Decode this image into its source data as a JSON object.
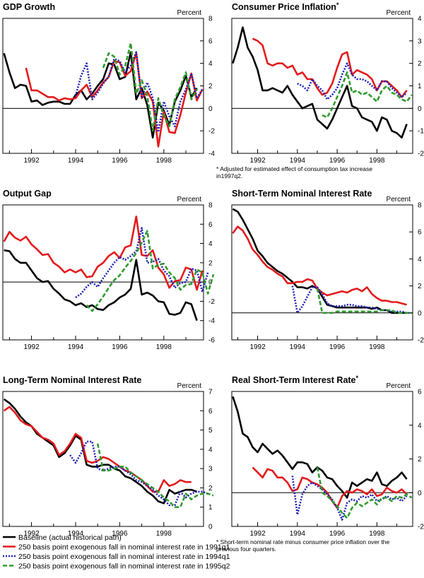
{
  "series_names": [
    "Baseline (actual historical path)",
    "250 basis point exogenous fall in nominal interest rate in 1991q1",
    "250 basis point exogenous fall in nominal interest rate in 1994q1",
    "250 basis point exogenous fall in nominal interest rate in 1995q2"
  ],
  "series_colors": [
    "#000000",
    "#e31a1c",
    "#1f1fb4",
    "#2e9b2e"
  ],
  "series_dash": [
    "",
    "",
    "2,2",
    "6,3"
  ],
  "legend": [
    "Baseline (actual historical path)",
    "250 basis point exogenous fall in nominal interest rate in 1991q1",
    "250 basis point exogenous fall in nominal interest rate in 1994q1",
    "250 basis point exogenous fall in nominal interest rate in 1995q2"
  ],
  "chart_data": [
    {
      "type": "line",
      "title": "GDP Growth",
      "title_mark": "",
      "ylabel": "Percent",
      "xlim": [
        1990.7,
        1999.8
      ],
      "ylim": [
        -4,
        8
      ],
      "yticks": [
        -4,
        -2,
        0,
        2,
        4,
        6,
        8
      ],
      "xticks": [
        1992,
        1994,
        1996,
        1998
      ],
      "xtick_labels": [
        "1992",
        "1994",
        "1996",
        "1998"
      ],
      "note": "",
      "series": [
        {
          "name": "Baseline (actual historical path)",
          "start": 1990.75,
          "values": [
            4.9,
            3.2,
            1.8,
            2.1,
            2.0,
            0.6,
            0.7,
            0.3,
            0.5,
            0.6,
            0.6,
            0.4,
            0.4,
            1.2,
            1.6,
            0.8,
            1.3,
            2.0,
            2.6,
            4.0,
            3.9,
            2.6,
            2.8,
            5.0,
            0.8,
            1.8,
            0.3,
            -2.6,
            0.5,
            -0.2,
            -1.5,
            0.6,
            1.6,
            2.9,
            1.0,
            1.8
          ]
        },
        {
          "name": "250 basis point exogenous fall in nominal interest rate in 1991q1",
          "start": 1991.75,
          "values": [
            3.6,
            1.6,
            1.6,
            1.3,
            1.0,
            1.0,
            0.7,
            0.9,
            0.8,
            0.9,
            1.6,
            2.1,
            1.0,
            1.6,
            2.3,
            2.8,
            4.2,
            4.1,
            2.9,
            3.3,
            4.9,
            0.9,
            1.5,
            0.6,
            -3.4,
            -0.3,
            -2.1,
            -2.2,
            -0.6,
            1.4,
            3.1,
            0.7,
            1.7
          ]
        },
        {
          "name": "250 basis point exogenous fall in nominal interest rate in 1994q1",
          "start": 1994.0,
          "values": [
            1.1,
            2.9,
            4.0,
            0.8,
            1.4,
            2.2,
            2.8,
            4.4,
            4.2,
            3.2,
            3.8,
            5.0,
            0.9,
            2.3,
            0.9,
            -2.1,
            0.6,
            -0.7,
            -1.6,
            0.6,
            1.7,
            3.1,
            0.9,
            1.7
          ]
        },
        {
          "name": "250 basis point exogenous fall in nominal interest rate in 1995q2",
          "start": 1995.25,
          "values": [
            3.6,
            4.9,
            4.6,
            3.0,
            3.8,
            5.8,
            1.3,
            2.5,
            1.1,
            -2.0,
            0.9,
            -0.6,
            -1.6,
            0.8,
            1.9,
            3.2,
            0.8,
            1.7
          ]
        }
      ]
    },
    {
      "type": "line",
      "title": "Consumer Price Inflation",
      "title_mark": "*",
      "ylabel": "Percent",
      "xlim": [
        1990.7,
        1999.8
      ],
      "ylim": [
        -2,
        4
      ],
      "yticks": [
        -2,
        -1,
        0,
        1,
        2,
        3,
        4
      ],
      "xticks": [
        1992,
        1994,
        1996,
        1998
      ],
      "xtick_labels": [
        "1992",
        "1994",
        "1996",
        "1998"
      ],
      "note": "* Adjusted for estimated effect of consumption tax increase in1997q2.",
      "series": [
        {
          "name": "Baseline (actual historical path)",
          "start": 1990.75,
          "values": [
            2.0,
            2.7,
            3.6,
            2.7,
            2.3,
            1.7,
            0.8,
            0.8,
            0.9,
            0.8,
            0.7,
            1.0,
            0.6,
            0.3,
            0.0,
            0.1,
            0.2,
            -0.5,
            -0.7,
            -0.9,
            -0.5,
            0.0,
            0.5,
            1.0,
            0.1,
            0.0,
            -0.4,
            -0.5,
            -0.6,
            -1.0,
            -0.4,
            -0.5,
            -1.0,
            -1.1,
            -1.3,
            -0.7
          ]
        },
        {
          "name": "250 basis point exogenous fall in nominal interest rate in 1991q1",
          "start": 1991.75,
          "values": [
            3.1,
            3.0,
            2.8,
            2.0,
            1.9,
            2.0,
            2.0,
            1.8,
            1.9,
            1.5,
            1.6,
            1.3,
            1.3,
            0.9,
            0.6,
            0.7,
            1.1,
            1.8,
            2.4,
            2.5,
            1.5,
            1.7,
            1.6,
            1.5,
            1.3,
            0.8,
            1.2,
            1.2,
            1.0,
            0.8,
            0.5,
            0.8
          ]
        },
        {
          "name": "250 basis point exogenous fall in nominal interest rate in 1994q1",
          "start": 1994.0,
          "values": [
            1.1,
            1.0,
            0.8,
            1.3,
            1.0,
            0.8,
            0.4,
            0.6,
            0.9,
            1.5,
            2.0,
            1.5,
            1.3,
            1.3,
            1.2,
            1.0,
            0.8,
            1.2,
            1.2,
            0.9,
            0.7,
            0.5,
            0.7
          ]
        },
        {
          "name": "250 basis point exogenous fall in nominal interest rate in 1995q2",
          "start": 1995.25,
          "values": [
            -0.3,
            -0.4,
            0.0,
            0.5,
            1.0,
            1.6,
            0.7,
            0.8,
            0.6,
            0.7,
            0.5,
            0.3,
            0.8,
            1.0,
            0.7,
            0.6,
            0.4,
            0.3,
            0.6
          ]
        }
      ]
    },
    {
      "type": "line",
      "title": "Output Gap",
      "title_mark": "",
      "ylabel": "Percent",
      "xlim": [
        1990.7,
        1999.8
      ],
      "ylim": [
        -6,
        8
      ],
      "yticks": [
        -6,
        -4,
        -2,
        0,
        2,
        4,
        6,
        8
      ],
      "xticks": [
        1992,
        1994,
        1996,
        1998
      ],
      "xtick_labels": [
        "1992",
        "1994",
        "1996",
        "1998"
      ],
      "note": "",
      "series": [
        {
          "name": "Baseline (actual historical path)",
          "start": 1990.75,
          "values": [
            3.3,
            3.2,
            2.4,
            2.0,
            2.0,
            1.2,
            0.4,
            0.0,
            0.1,
            -0.7,
            -1.2,
            -1.8,
            -2.0,
            -2.4,
            -2.2,
            -2.6,
            -2.4,
            -2.8,
            -2.9,
            -2.4,
            -2.1,
            -1.6,
            -1.3,
            -0.7,
            2.3,
            -1.3,
            -1.1,
            -1.4,
            -2.0,
            -2.1,
            -3.3,
            -3.4,
            -3.2,
            -2.1,
            -2.3,
            -4.0
          ]
        },
        {
          "name": "250 basis point exogenous fall in nominal interest rate in 1991q1",
          "start": 1990.75,
          "values": [
            4.2,
            5.2,
            4.6,
            4.3,
            4.7,
            3.9,
            3.4,
            2.8,
            2.9,
            2.0,
            1.6,
            1.0,
            1.3,
            1.0,
            1.3,
            0.5,
            0.6,
            1.6,
            2.0,
            2.7,
            3.1,
            2.5,
            3.6,
            3.8,
            6.8,
            2.8,
            2.7,
            3.3,
            1.5,
            0.8,
            -0.6,
            0.1,
            0.2,
            1.5,
            1.3,
            -0.8,
            1.2
          ]
        },
        {
          "name": "250 basis point exogenous fall in nominal interest rate in 1994q1",
          "start": 1994.0,
          "values": [
            -1.6,
            -1.2,
            -0.5,
            0.0,
            -0.5,
            0.4,
            1.2,
            2.0,
            2.6,
            2.3,
            2.7,
            3.2,
            5.6,
            2.0,
            2.1,
            2.4,
            1.2,
            0.6,
            -0.6,
            -0.1,
            0.0,
            1.4,
            1.2,
            -1.0,
            1.0
          ]
        },
        {
          "name": "250 basis point exogenous fall in nominal interest rate in 1995q2",
          "start": 1994.5,
          "values": [
            -2.4,
            -3.0,
            -2.3,
            -1.5,
            -0.6,
            0.2,
            0.7,
            1.5,
            2.2,
            3.0,
            4.1,
            5.3,
            1.4,
            1.8,
            1.9,
            1.0,
            0.4,
            -0.8,
            -0.3,
            -0.2,
            1.3,
            1.0,
            -1.2,
            0.8
          ]
        }
      ]
    },
    {
      "type": "line",
      "title": "Short-Term Nominal Interest Rate",
      "title_mark": "",
      "ylabel": "Percent",
      "xlim": [
        1990.7,
        1999.8
      ],
      "ylim": [
        -2,
        8
      ],
      "yticks": [
        -2,
        0,
        2,
        4,
        6,
        8
      ],
      "xticks": [
        1992,
        1994,
        1996,
        1998
      ],
      "xtick_labels": [
        "1992",
        "1994",
        "1996",
        "1998"
      ],
      "note": "",
      "series": [
        {
          "name": "Baseline (actual historical path)",
          "start": 1990.75,
          "values": [
            7.7,
            7.5,
            6.9,
            6.2,
            5.5,
            4.6,
            4.2,
            3.7,
            3.4,
            3.1,
            2.9,
            2.6,
            2.3,
            1.9,
            1.9,
            1.8,
            2.0,
            1.8,
            1.2,
            0.6,
            0.5,
            0.4,
            0.4,
            0.4,
            0.4,
            0.4,
            0.4,
            0.4,
            0.3,
            0.4,
            0.2,
            0.2,
            0.0,
            0.0,
            0.0,
            0.0
          ]
        },
        {
          "name": "250 basis point exogenous fall in nominal interest rate in 1991q1",
          "start": 1990.75,
          "values": [
            5.9,
            6.4,
            6.1,
            5.5,
            4.7,
            4.3,
            3.8,
            3.4,
            3.2,
            2.9,
            2.7,
            2.2,
            2.2,
            2.3,
            2.3,
            2.5,
            2.4,
            1.8,
            1.5,
            1.3,
            1.4,
            1.5,
            1.6,
            1.5,
            1.7,
            1.8,
            1.6,
            1.9,
            1.4,
            1.1,
            0.9,
            0.9,
            0.8,
            0.8,
            0.7,
            0.6
          ]
        },
        {
          "name": "250 basis point exogenous fall in nominal interest rate in 1994q1",
          "start": 1993.75,
          "values": [
            2.0,
            0.0,
            0.5,
            1.2,
            1.9,
            1.9,
            1.4,
            0.7,
            0.5,
            0.5,
            0.5,
            0.6,
            0.6,
            0.5,
            0.5,
            0.4,
            0.4,
            0.3,
            0.2,
            0.2,
            0.1,
            0.1,
            0.1,
            0.0,
            0.0
          ]
        },
        {
          "name": "250 basis point exogenous fall in nominal interest rate in 1995q2",
          "start": 1995.0,
          "values": [
            1.8,
            0.0,
            0.0,
            0.0,
            0.1,
            0.1,
            0.1,
            0.1,
            0.1,
            0.1,
            0.1,
            0.1,
            0.1,
            0.2,
            0.2,
            0.2,
            0.0,
            0.0,
            0.0,
            0.0
          ]
        }
      ]
    },
    {
      "type": "line",
      "title": "Long-Term Nominal Interest Rate",
      "title_mark": "",
      "ylabel": "Percent",
      "xlim": [
        1990.7,
        1999.8
      ],
      "ylim": [
        0,
        7
      ],
      "yticks": [
        0,
        1,
        2,
        3,
        4,
        5,
        6,
        7
      ],
      "xticks": [
        1992,
        1994,
        1996,
        1998
      ],
      "xtick_labels": [
        "1992",
        "1994",
        "1996",
        "1998"
      ],
      "note": "",
      "series": [
        {
          "name": "Baseline (actual historical path)",
          "start": 1990.75,
          "values": [
            6.6,
            6.4,
            6.1,
            5.7,
            5.4,
            5.2,
            4.8,
            4.6,
            4.4,
            4.2,
            3.6,
            3.8,
            4.2,
            4.7,
            4.5,
            3.2,
            3.1,
            3.1,
            3.2,
            3.2,
            3.0,
            2.9,
            2.6,
            2.5,
            2.3,
            2.1,
            1.8,
            1.6,
            1.3,
            1.2,
            1.9,
            1.7,
            1.8,
            1.9,
            1.9,
            1.8
          ]
        },
        {
          "name": "250 basis point exogenous fall in nominal interest rate in 1991q1",
          "start": 1990.75,
          "values": [
            6.0,
            6.2,
            5.9,
            5.5,
            5.3,
            5.2,
            4.9,
            4.6,
            4.5,
            4.3,
            3.7,
            3.9,
            4.3,
            4.8,
            4.6,
            3.4,
            3.3,
            3.4,
            3.6,
            3.5,
            3.3,
            3.1,
            2.9,
            2.8,
            2.6,
            2.4,
            2.1,
            1.8,
            1.8,
            2.4,
            2.1,
            2.2,
            2.4,
            2.3,
            2.3
          ]
        },
        {
          "name": "250 basis point exogenous fall in nominal interest rate in 1994q1",
          "start": 1993.75,
          "values": [
            3.7,
            3.3,
            3.8,
            4.4,
            4.4,
            3.0,
            2.9,
            3.0,
            3.1,
            3.1,
            2.9,
            2.7,
            2.4,
            2.3,
            2.1,
            1.9,
            1.6,
            1.4,
            1.1,
            1.1,
            1.8,
            1.5,
            1.7,
            1.8,
            1.8,
            1.7
          ]
        },
        {
          "name": "250 basis point exogenous fall in nominal interest rate in 1995q2",
          "start": 1995.0,
          "values": [
            4.3,
            2.9,
            2.9,
            3.0,
            3.1,
            3.1,
            2.8,
            2.6,
            2.4,
            2.2,
            2.0,
            1.8,
            1.5,
            1.3,
            1.0,
            1.0,
            1.7,
            1.4,
            1.6,
            1.7,
            1.7,
            1.6
          ]
        }
      ]
    },
    {
      "type": "line",
      "title": "Real Short-Term Interest Rate",
      "title_mark": "*",
      "ylabel": "Percent",
      "xlim": [
        1990.7,
        1999.8
      ],
      "ylim": [
        -2,
        6
      ],
      "yticks": [
        -2,
        0,
        2,
        4,
        6
      ],
      "xticks": [
        1992,
        1994,
        1996,
        1998
      ],
      "xtick_labels": [
        "1992",
        "1994",
        "1996",
        "1998"
      ],
      "note": "* Short-term nominal rate minus consumer price inflation over the previous four quarters.",
      "series": [
        {
          "name": "Baseline (actual historical path)",
          "start": 1990.75,
          "values": [
            5.7,
            4.8,
            3.5,
            3.3,
            2.7,
            2.4,
            2.9,
            2.6,
            2.3,
            2.5,
            2.2,
            1.8,
            1.4,
            1.8,
            1.8,
            1.7,
            1.2,
            1.5,
            1.3,
            0.9,
            0.8,
            0.4,
            0.1,
            -0.3,
            0.6,
            0.4,
            0.6,
            0.8,
            0.7,
            1.2,
            0.5,
            0.4,
            0.7,
            0.9,
            1.2,
            0.8
          ]
        },
        {
          "name": "250 basis point exogenous fall in nominal interest rate in 1991q1",
          "start": 1991.75,
          "values": [
            1.5,
            1.2,
            0.9,
            1.4,
            1.3,
            0.9,
            0.9,
            0.6,
            0.1,
            0.2,
            0.9,
            0.8,
            0.6,
            0.5,
            0.3,
            0.0,
            -0.5,
            -0.9,
            -0.2,
            0.1,
            0.0,
            0.2,
            0.1,
            -0.1,
            0.2,
            -0.2,
            -0.1,
            0.3,
            0.1,
            0.0,
            0.2,
            -0.1
          ]
        },
        {
          "name": "250 basis point exogenous fall in nominal interest rate in 1994q1",
          "start": 1993.75,
          "values": [
            1.0,
            -1.3,
            -0.1,
            0.4,
            0.6,
            0.4,
            0.2,
            -0.1,
            -0.4,
            -0.9,
            -1.6,
            -0.6,
            -0.4,
            -0.5,
            -0.2,
            -0.3,
            -0.1,
            -0.5,
            -0.4,
            -0.2,
            -0.4,
            -0.3,
            -0.5,
            -0.2
          ]
        },
        {
          "name": "250 basis point exogenous fall in nominal interest rate in 1995q2",
          "start": 1995.0,
          "values": [
            1.5,
            0.0,
            -0.2,
            -0.5,
            -0.8,
            -1.2,
            -1.5,
            -0.9,
            -0.6,
            -0.8,
            -0.6,
            -0.4,
            -0.7,
            -0.3,
            -0.3,
            -0.5,
            -0.2,
            -0.3,
            -0.1,
            -0.3
          ]
        }
      ]
    }
  ]
}
